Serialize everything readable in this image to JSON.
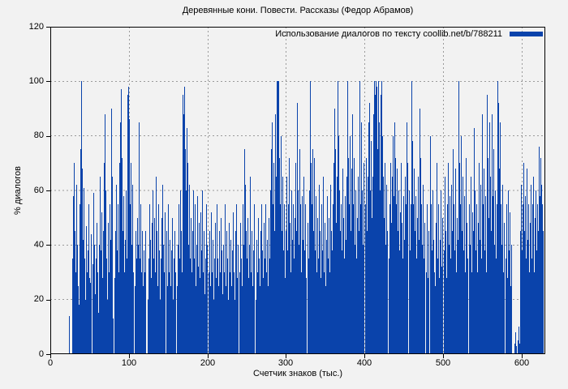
{
  "title": "Деревянные кони. Повести. Рассказы (Федор Абрамов)",
  "legend": {
    "label": "Использование диалогов по тексту coollib.net/b/788211"
  },
  "axes": {
    "x": {
      "label": "Счетчик знаков (тыс.)",
      "ticks": [
        0,
        100,
        200,
        300,
        400,
        500,
        600
      ],
      "range": [
        0,
        630
      ]
    },
    "y": {
      "label": "% диалогов",
      "ticks": [
        0,
        20,
        40,
        60,
        80,
        100,
        120
      ],
      "range": [
        0,
        120
      ]
    }
  },
  "colors": {
    "background": "#f2f2f2",
    "bar": "#0a43ab",
    "grid": "#9a9a9a",
    "border": "#000000",
    "text": "#000000"
  },
  "chart_data": {
    "type": "bar",
    "title": "Деревянные кони. Повести. Рассказы (Федор Абрамов)",
    "xlabel": "Счетчик знаков (тыс.)",
    "ylabel": "% диалогов",
    "legend_entries": [
      "Использование диалогов по тексту coollib.net/b/788211"
    ],
    "legend_position": "top-right-inside",
    "grid": true,
    "bar_color": "#0a43ab",
    "xlim": [
      0,
      630
    ],
    "ylim": [
      0,
      120
    ],
    "x_ticks": [
      0,
      100,
      200,
      300,
      400,
      500,
      600
    ],
    "y_ticks": [
      0,
      20,
      40,
      60,
      80,
      100,
      120
    ],
    "x_start": 0,
    "x_step": 1,
    "values": [
      0,
      0,
      0,
      0,
      0,
      0,
      0,
      0,
      0,
      0,
      0,
      0,
      0,
      0,
      0,
      0,
      0,
      0,
      0,
      0,
      0,
      0,
      0,
      0,
      14,
      0,
      0,
      0,
      35,
      58,
      70,
      45,
      30,
      62,
      40,
      25,
      18,
      55,
      75,
      100,
      68,
      42,
      61,
      35,
      20,
      47,
      30,
      12,
      38,
      55,
      28,
      26,
      44,
      0,
      33,
      59,
      40,
      22,
      35,
      48,
      30,
      15,
      40,
      65,
      38,
      52,
      28,
      45,
      70,
      88,
      60,
      35,
      20,
      48,
      30,
      55,
      42,
      90,
      65,
      38,
      13,
      0,
      28,
      45,
      62,
      38,
      55,
      30,
      70,
      85,
      97,
      72,
      45,
      58,
      30,
      42,
      60,
      35,
      95,
      98,
      86,
      55,
      70,
      40,
      62,
      30,
      0,
      25,
      45,
      35,
      50,
      28,
      40,
      85,
      35,
      55,
      30,
      45,
      25,
      38,
      30,
      45,
      0,
      0,
      20,
      35,
      55,
      42,
      28,
      48,
      60,
      35,
      50,
      30,
      65,
      45,
      25,
      55,
      38,
      20,
      35,
      50,
      28,
      62,
      40,
      30,
      52,
      0,
      45,
      25,
      55,
      30,
      42,
      25,
      38,
      50,
      20,
      35,
      45,
      30,
      0,
      25,
      40,
      55,
      35,
      60,
      45,
      30,
      95,
      88,
      98,
      75,
      60,
      83,
      55,
      70,
      40,
      62,
      35,
      50,
      30,
      45,
      60,
      35,
      55,
      25,
      40,
      58,
      32,
      48,
      28,
      52,
      38,
      60,
      30,
      45,
      22,
      35,
      55,
      40,
      0,
      30,
      45,
      25,
      38,
      52,
      30,
      42,
      20,
      35,
      48,
      28,
      55,
      35,
      25,
      45,
      30,
      50,
      38,
      22,
      40,
      30,
      55,
      25,
      45,
      35,
      20,
      48,
      30,
      42,
      25,
      38,
      52,
      30,
      20,
      45,
      35,
      55,
      28,
      40,
      0,
      30,
      48,
      35,
      25,
      55,
      40,
      75,
      62,
      45,
      35,
      50,
      28,
      40,
      65,
      30,
      45,
      25,
      38,
      55,
      0,
      20,
      42,
      30,
      50,
      35,
      25,
      45,
      32,
      55,
      38,
      28,
      48,
      35,
      55,
      30,
      42,
      25,
      50,
      35,
      60,
      75,
      85,
      55,
      70,
      45,
      88,
      65,
      100,
      100,
      100,
      72,
      55,
      80,
      45,
      65,
      38,
      55,
      28,
      0,
      45,
      65,
      38,
      55,
      72,
      48,
      30,
      60,
      42,
      55,
      35,
      50,
      70,
      45,
      92,
      60,
      40,
      75,
      55,
      30,
      58,
      42,
      65,
      38,
      55,
      28,
      0,
      48,
      35,
      60,
      100,
      87,
      70,
      55,
      75,
      45,
      72,
      38,
      58,
      30,
      50,
      35,
      62,
      45,
      28,
      55,
      38,
      65,
      30,
      48,
      25,
      42,
      58,
      35,
      50,
      30,
      62,
      45,
      38,
      55,
      70,
      90,
      55,
      75,
      48,
      65,
      100,
      80,
      60,
      45,
      55,
      38,
      68,
      50,
      35,
      58,
      42,
      65,
      100,
      72,
      55,
      80,
      45,
      68,
      88,
      55,
      72,
      40,
      60,
      35,
      50,
      65,
      45,
      100,
      75,
      55,
      85,
      60,
      40,
      70,
      0,
      55,
      72,
      45,
      65,
      85,
      92,
      60,
      78,
      50,
      65,
      88,
      100,
      95,
      100,
      98,
      75,
      100,
      85,
      60,
      95,
      100,
      80,
      65,
      50,
      70,
      55,
      40,
      62,
      45,
      0,
      35,
      55,
      70,
      48,
      65,
      80,
      58,
      85,
      72,
      55,
      68,
      45,
      60,
      38,
      52,
      70,
      48,
      35,
      58,
      42,
      65,
      55,
      85,
      70,
      0,
      45,
      60,
      38,
      55,
      100,
      78,
      55,
      68,
      45,
      58,
      35,
      50,
      65,
      42,
      90,
      72,
      55,
      40,
      62,
      35,
      48,
      0,
      30,
      55,
      28,
      45,
      0,
      80,
      55,
      38,
      60,
      42,
      30,
      0,
      25,
      48,
      70,
      35,
      55,
      28,
      42,
      60,
      32,
      50,
      0,
      38,
      65,
      45,
      28,
      55,
      70,
      40,
      58,
      35,
      62,
      45,
      75,
      55,
      38,
      68,
      30,
      50,
      42,
      60,
      100,
      70,
      55,
      80,
      45,
      65,
      38,
      58,
      30,
      72,
      48,
      35,
      0,
      55,
      40,
      65,
      30,
      52,
      45,
      83,
      60,
      38,
      55,
      30,
      48,
      70,
      42,
      62,
      35,
      88,
      55,
      45,
      68,
      38,
      58,
      30,
      95,
      72,
      50,
      85,
      65,
      45,
      88,
      58,
      75,
      40,
      60,
      35,
      55,
      100,
      92,
      68,
      85,
      55,
      40,
      62,
      30,
      48,
      0,
      35,
      55,
      28,
      45,
      60,
      38,
      52,
      25,
      40,
      0,
      0,
      0,
      4,
      8,
      3,
      0,
      5,
      10,
      4,
      45,
      62,
      38,
      55,
      70,
      45,
      58,
      35,
      68,
      42,
      55,
      30,
      48,
      62,
      35,
      55,
      40,
      65,
      30,
      50,
      60,
      38,
      55,
      45,
      76,
      58,
      72,
      62,
      55,
      45,
      0,
      0
    ]
  }
}
